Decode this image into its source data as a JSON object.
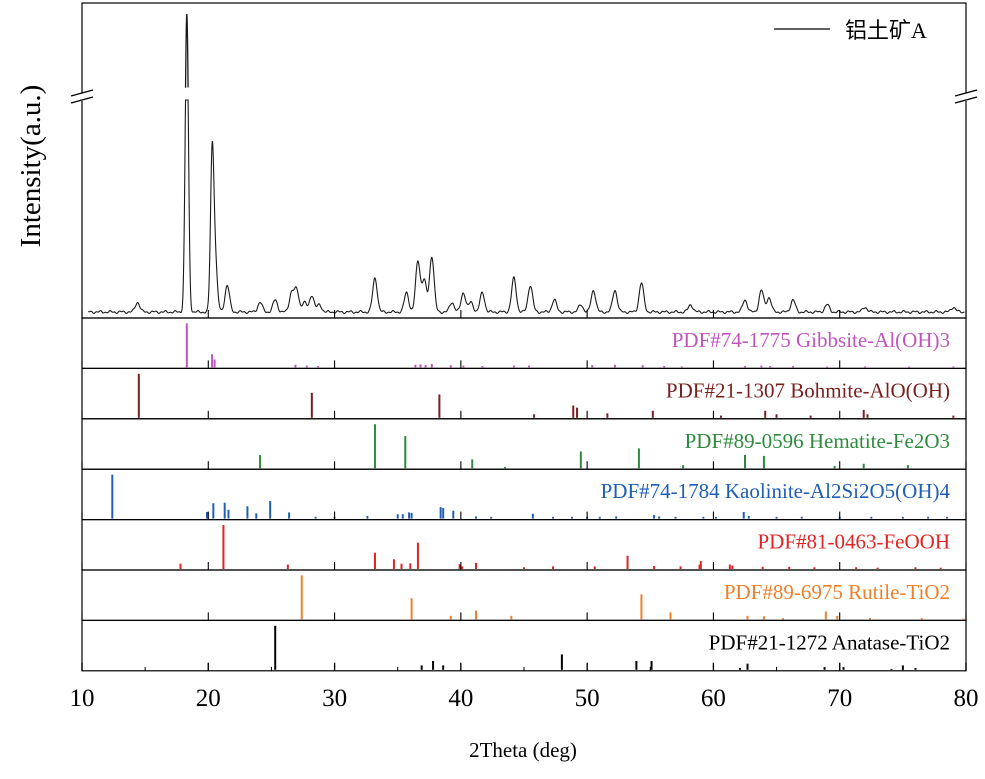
{
  "chart_data": {
    "type": "line",
    "xlabel": "2Theta (deg)",
    "ylabel": "Intensity(a.u.)",
    "xlim": [
      10,
      80
    ],
    "xticks": [
      10,
      20,
      30,
      40,
      50,
      60,
      70,
      80
    ],
    "grid": false,
    "legend_placement": "top-right",
    "pattern": {
      "name": "铝土矿A",
      "color": "#000000",
      "baseline": 2.5,
      "break_at": 90,
      "ymax": 128,
      "peaks": [
        {
          "x": 14.4,
          "h": 4
        },
        {
          "x": 18.3,
          "h": 122
        },
        {
          "x": 20.3,
          "h": 56
        },
        {
          "x": 20.5,
          "h": 25
        },
        {
          "x": 21.5,
          "h": 11
        },
        {
          "x": 24.1,
          "h": 4
        },
        {
          "x": 25.3,
          "h": 5
        },
        {
          "x": 26.6,
          "h": 8
        },
        {
          "x": 27.0,
          "h": 9
        },
        {
          "x": 27.6,
          "h": 4
        },
        {
          "x": 28.2,
          "h": 7
        },
        {
          "x": 28.8,
          "h": 3
        },
        {
          "x": 33.2,
          "h": 14
        },
        {
          "x": 35.7,
          "h": 8
        },
        {
          "x": 36.6,
          "h": 21
        },
        {
          "x": 37.1,
          "h": 13
        },
        {
          "x": 37.7,
          "h": 23
        },
        {
          "x": 39.3,
          "h": 4
        },
        {
          "x": 40.2,
          "h": 8
        },
        {
          "x": 40.8,
          "h": 4
        },
        {
          "x": 41.7,
          "h": 8
        },
        {
          "x": 44.2,
          "h": 14
        },
        {
          "x": 45.5,
          "h": 11
        },
        {
          "x": 47.4,
          "h": 5
        },
        {
          "x": 49.5,
          "h": 3
        },
        {
          "x": 50.5,
          "h": 9
        },
        {
          "x": 52.2,
          "h": 9
        },
        {
          "x": 54.3,
          "h": 12
        },
        {
          "x": 58.2,
          "h": 3
        },
        {
          "x": 62.5,
          "h": 5
        },
        {
          "x": 63.8,
          "h": 9
        },
        {
          "x": 64.4,
          "h": 6
        },
        {
          "x": 66.3,
          "h": 5
        },
        {
          "x": 69.0,
          "h": 3
        },
        {
          "x": 72.0,
          "h": 2
        },
        {
          "x": 79.0,
          "h": 2
        }
      ]
    },
    "references": [
      {
        "label": "PDF#74-1775 Gibbsite-Al(OH)3",
        "color": "#bf55bf",
        "lines": [
          [
            18.3,
            100
          ],
          [
            20.3,
            30
          ],
          [
            20.5,
            18
          ],
          [
            26.9,
            6
          ],
          [
            27.8,
            4
          ],
          [
            28.7,
            3
          ],
          [
            36.4,
            6
          ],
          [
            36.8,
            7
          ],
          [
            37.2,
            5
          ],
          [
            37.7,
            8
          ],
          [
            39.2,
            5
          ],
          [
            40.2,
            4
          ],
          [
            41.7,
            3
          ],
          [
            44.2,
            4
          ],
          [
            45.4,
            4
          ],
          [
            50.4,
            5
          ],
          [
            52.2,
            6
          ],
          [
            54.4,
            5
          ],
          [
            56.1,
            3
          ],
          [
            57.5,
            2
          ],
          [
            62.5,
            3
          ],
          [
            63.8,
            4
          ],
          [
            64.5,
            3
          ],
          [
            66.3,
            3
          ],
          [
            69.0,
            2
          ],
          [
            72.0,
            2
          ],
          [
            75.5,
            2
          ],
          [
            79.0,
            2
          ]
        ]
      },
      {
        "label": "PDF#21-1307 Bohmite-AlO(OH)",
        "color": "#7a1f1f",
        "lines": [
          [
            14.5,
            100
          ],
          [
            28.2,
            57
          ],
          [
            38.3,
            53
          ],
          [
            45.8,
            8
          ],
          [
            48.9,
            28
          ],
          [
            49.2,
            23
          ],
          [
            51.6,
            10
          ],
          [
            55.2,
            16
          ],
          [
            60.6,
            5
          ],
          [
            64.1,
            16
          ],
          [
            65.0,
            8
          ],
          [
            67.7,
            5
          ],
          [
            71.9,
            18
          ],
          [
            72.2,
            8
          ],
          [
            79.0,
            5
          ]
        ]
      },
      {
        "label": "PDF#89-0596 Hematite-Fe2O3",
        "color": "#2e8b3e",
        "lines": [
          [
            24.1,
            30
          ],
          [
            33.2,
            100
          ],
          [
            35.6,
            73
          ],
          [
            40.9,
            20
          ],
          [
            43.5,
            3
          ],
          [
            49.5,
            38
          ],
          [
            54.1,
            45
          ],
          [
            57.6,
            7
          ],
          [
            62.5,
            30
          ],
          [
            64.0,
            28
          ],
          [
            69.6,
            5
          ],
          [
            71.9,
            10
          ],
          [
            75.4,
            7
          ]
        ]
      },
      {
        "label": "PDF#74-1784 Kaolinite-Al2Si2O5(OH)4",
        "color": "#1f5fb4",
        "lines": [
          [
            12.4,
            100
          ],
          [
            19.9,
            15
          ],
          [
            20.4,
            35
          ],
          [
            21.3,
            36
          ],
          [
            21.6,
            20
          ],
          [
            23.1,
            28
          ],
          [
            23.8,
            12
          ],
          [
            24.9,
            40
          ],
          [
            26.4,
            14
          ],
          [
            28.5,
            4
          ],
          [
            30.0,
            4
          ],
          [
            32.6,
            6
          ],
          [
            35.0,
            10
          ],
          [
            35.4,
            10
          ],
          [
            35.9,
            14
          ],
          [
            36.1,
            13
          ],
          [
            38.4,
            26
          ],
          [
            38.6,
            24
          ],
          [
            39.4,
            18
          ],
          [
            41.2,
            5
          ],
          [
            42.4,
            4
          ],
          [
            45.7,
            11
          ],
          [
            47.3,
            4
          ],
          [
            48.8,
            4
          ],
          [
            50.0,
            4
          ],
          [
            51.0,
            4
          ],
          [
            52.3,
            5
          ],
          [
            55.3,
            8
          ],
          [
            55.7,
            5
          ],
          [
            57.0,
            4
          ],
          [
            59.2,
            4
          ],
          [
            60.2,
            4
          ],
          [
            62.4,
            15
          ],
          [
            62.8,
            6
          ],
          [
            65.0,
            4
          ],
          [
            67.0,
            4
          ],
          [
            70.0,
            4
          ],
          [
            72.5,
            4
          ],
          [
            75.0,
            4
          ],
          [
            77.0,
            4
          ],
          [
            78.5,
            4
          ]
        ]
      },
      {
        "label": "PDF#81-0463-FeOOH",
        "color": "#e02424",
        "lines": [
          [
            17.8,
            12
          ],
          [
            21.2,
            100
          ],
          [
            26.3,
            10
          ],
          [
            33.2,
            37
          ],
          [
            34.7,
            22
          ],
          [
            35.3,
            12
          ],
          [
            36.0,
            13
          ],
          [
            36.6,
            60
          ],
          [
            39.9,
            11
          ],
          [
            40.1,
            6
          ],
          [
            41.2,
            14
          ],
          [
            45.0,
            4
          ],
          [
            47.3,
            6
          ],
          [
            50.6,
            6
          ],
          [
            53.2,
            30
          ],
          [
            55.3,
            7
          ],
          [
            57.4,
            6
          ],
          [
            58.9,
            10
          ],
          [
            59.0,
            18
          ],
          [
            61.3,
            10
          ],
          [
            61.5,
            8
          ],
          [
            63.9,
            5
          ],
          [
            66.0,
            5
          ],
          [
            68.0,
            4
          ],
          [
            71.3,
            4
          ],
          [
            73.0,
            3
          ],
          [
            76.0,
            4
          ],
          [
            78.0,
            3
          ]
        ]
      },
      {
        "label": "PDF#89-6975 Rutile-TiO2",
        "color": "#f07f2a",
        "lines": [
          [
            27.4,
            100
          ],
          [
            36.1,
            48
          ],
          [
            39.2,
            8
          ],
          [
            41.2,
            20
          ],
          [
            44.0,
            8
          ],
          [
            54.3,
            57
          ],
          [
            56.6,
            16
          ],
          [
            62.7,
            8
          ],
          [
            64.0,
            7
          ],
          [
            65.5,
            3
          ],
          [
            68.9,
            18
          ],
          [
            69.8,
            8
          ],
          [
            72.4,
            3
          ],
          [
            76.5,
            3
          ],
          [
            79.8,
            2
          ]
        ]
      },
      {
        "label": "PDF#21-1272 Anatase-TiO2",
        "color": "#000000",
        "lines": [
          [
            25.3,
            100
          ],
          [
            36.9,
            10
          ],
          [
            37.8,
            20
          ],
          [
            38.6,
            10
          ],
          [
            48.0,
            35
          ],
          [
            53.9,
            20
          ],
          [
            55.1,
            20
          ],
          [
            62.1,
            4
          ],
          [
            62.7,
            14
          ],
          [
            68.8,
            6
          ],
          [
            70.3,
            6
          ],
          [
            74.1,
            2
          ],
          [
            75.0,
            10
          ],
          [
            76.0,
            4
          ]
        ]
      }
    ]
  }
}
